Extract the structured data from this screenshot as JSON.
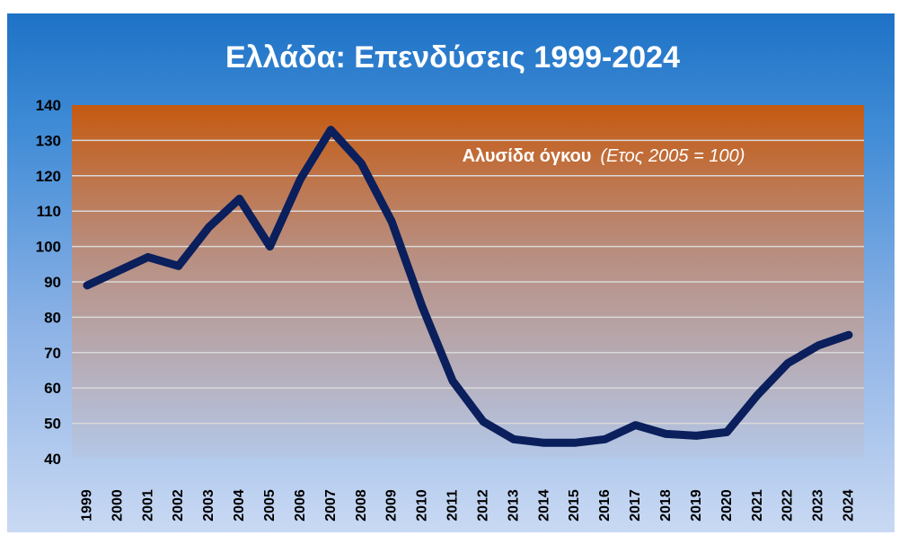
{
  "chart_data": {
    "type": "line",
    "title": "Ελλάδα: Επενδύσεις 1999-2024",
    "annotation": {
      "main": "Αλυσίδα όγκου",
      "sub": "(Ετος 2005 = 100)"
    },
    "xlabel": "",
    "ylabel": "",
    "ylim": [
      40,
      140
    ],
    "yticks": [
      40,
      50,
      60,
      70,
      80,
      90,
      100,
      110,
      120,
      130,
      140
    ],
    "grid": true,
    "x": [
      "1999",
      "2000",
      "2001",
      "2002",
      "2003",
      "2004",
      "2005",
      "2006",
      "2007",
      "2008",
      "2009",
      "2010",
      "2011",
      "2012",
      "2013",
      "2014",
      "2015",
      "2016",
      "2017",
      "2018",
      "2019",
      "2020",
      "2021",
      "2022",
      "2023",
      "2024"
    ],
    "series": [
      {
        "values": [
          89,
          93,
          97,
          94.5,
          105.5,
          113.5,
          100,
          119,
          133,
          123.5,
          107,
          83,
          62,
          50.5,
          45.5,
          44.5,
          44.5,
          45.5,
          49.5,
          47,
          46.5,
          47.5,
          58,
          67,
          72,
          75
        ]
      }
    ],
    "colors": {
      "line": "#0a1f5c",
      "band_top": "#c55a11",
      "band_bottom": "#b4c7e7",
      "gridline": "#d9d9d9"
    }
  }
}
